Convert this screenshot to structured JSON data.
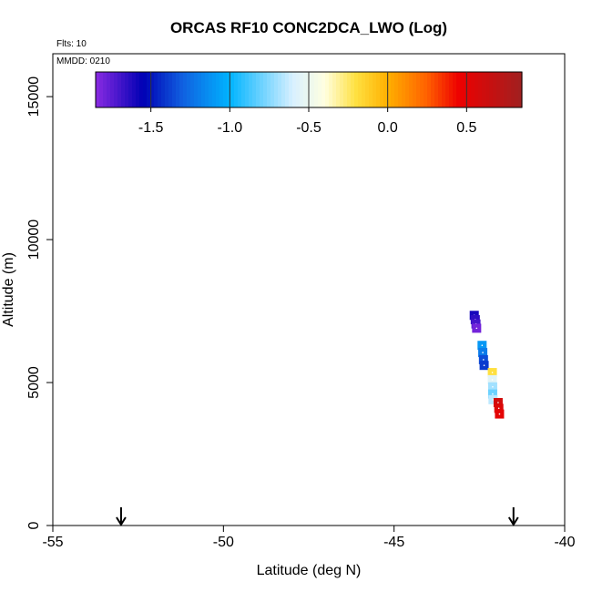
{
  "chart_data": {
    "type": "scatter",
    "title": "ORCAS RF10 CONC2DCA_LWO (Log)",
    "xlabel": "Latitude (deg N)",
    "ylabel": "Altitude (m)",
    "xlim": [
      -55,
      -40
    ],
    "ylim": [
      0,
      16500
    ],
    "x_ticks": [
      -55,
      -50,
      -45,
      -40
    ],
    "x_tick_labels": [
      "-55",
      "-50",
      "-45",
      "-40"
    ],
    "y_ticks": [
      0,
      5000,
      10000,
      15000
    ],
    "y_tick_labels": [
      "0",
      "5000",
      "10000",
      "15000"
    ],
    "annotations": {
      "flights": "Flts: 10",
      "date": "MMDD: 0210"
    },
    "arrows_at_latitude": [
      -53.0,
      -41.5
    ],
    "colorbar": {
      "min": -1.85,
      "max": 0.85,
      "ticks": [
        -1.5,
        -1.0,
        -0.5,
        0.0,
        0.5
      ],
      "tick_labels": [
        "-1.5",
        "-1.0",
        "-0.5",
        "0.0",
        "0.5"
      ],
      "divisions": [
        -1.5,
        -1.0,
        -0.5,
        0.0,
        0.5
      ],
      "color_stops": [
        {
          "v": -1.85,
          "c": "#8a2be2"
        },
        {
          "v": -1.55,
          "c": "#0000b4"
        },
        {
          "v": -1.3,
          "c": "#1060e0"
        },
        {
          "v": -1.0,
          "c": "#00b4ff"
        },
        {
          "v": -0.6,
          "c": "#d8f0ff"
        },
        {
          "v": -0.4,
          "c": "#ffffe0"
        },
        {
          "v": -0.2,
          "c": "#ffe040"
        },
        {
          "v": 0.0,
          "c": "#ffb000"
        },
        {
          "v": 0.25,
          "c": "#ff6000"
        },
        {
          "v": 0.45,
          "c": "#ee0000"
        },
        {
          "v": 0.85,
          "c": "#a02020"
        }
      ]
    },
    "series": [
      {
        "name": "CONC2DCA_LWO",
        "points": [
          {
            "x": -42.65,
            "y": 7350,
            "v": -1.6
          },
          {
            "x": -42.62,
            "y": 7200,
            "v": -1.65
          },
          {
            "x": -42.6,
            "y": 7050,
            "v": -1.7
          },
          {
            "x": -42.58,
            "y": 6900,
            "v": -1.8
          },
          {
            "x": -42.42,
            "y": 6300,
            "v": -1.1
          },
          {
            "x": -42.4,
            "y": 6050,
            "v": -1.2
          },
          {
            "x": -42.38,
            "y": 5800,
            "v": -1.35
          },
          {
            "x": -42.36,
            "y": 5600,
            "v": -1.4
          },
          {
            "x": -42.12,
            "y": 5350,
            "v": -0.2
          },
          {
            "x": -42.12,
            "y": 5100,
            "v": -0.55
          },
          {
            "x": -42.11,
            "y": 4850,
            "v": -0.7
          },
          {
            "x": -42.11,
            "y": 4600,
            "v": -0.8
          },
          {
            "x": -42.1,
            "y": 4400,
            "v": -0.65
          },
          {
            "x": -41.95,
            "y": 4300,
            "v": 0.6
          },
          {
            "x": -41.93,
            "y": 4100,
            "v": 0.55
          },
          {
            "x": -41.91,
            "y": 3900,
            "v": 0.5
          }
        ]
      }
    ]
  }
}
